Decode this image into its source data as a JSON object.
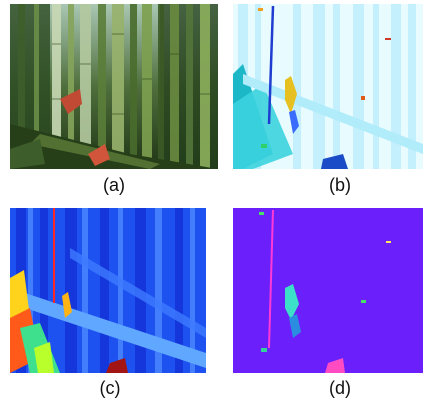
{
  "figure": {
    "panels": [
      {
        "id": "a",
        "caption": "(a)",
        "content": "photo"
      },
      {
        "id": "b",
        "caption": "(b)",
        "content": "segmentation-map"
      },
      {
        "id": "c",
        "caption": "(c)",
        "content": "depth-map"
      },
      {
        "id": "d",
        "caption": "(d)",
        "content": "flow-map"
      }
    ]
  },
  "colors": {
    "forest_dark": "#1d3a17",
    "bamboo_green": "#6d8f3f",
    "seg_background": "#e8fbff",
    "seg_light": "#bdeefd",
    "seg_teal": "#1cb8c8",
    "depth_background": "#1d52f0",
    "depth_dark": "#1026c8",
    "depth_light": "#7fb6ff",
    "flow_background": "#6a1ffb",
    "flow_magenta": "#ff39d6",
    "flow_cyan": "#3ce0c8"
  }
}
